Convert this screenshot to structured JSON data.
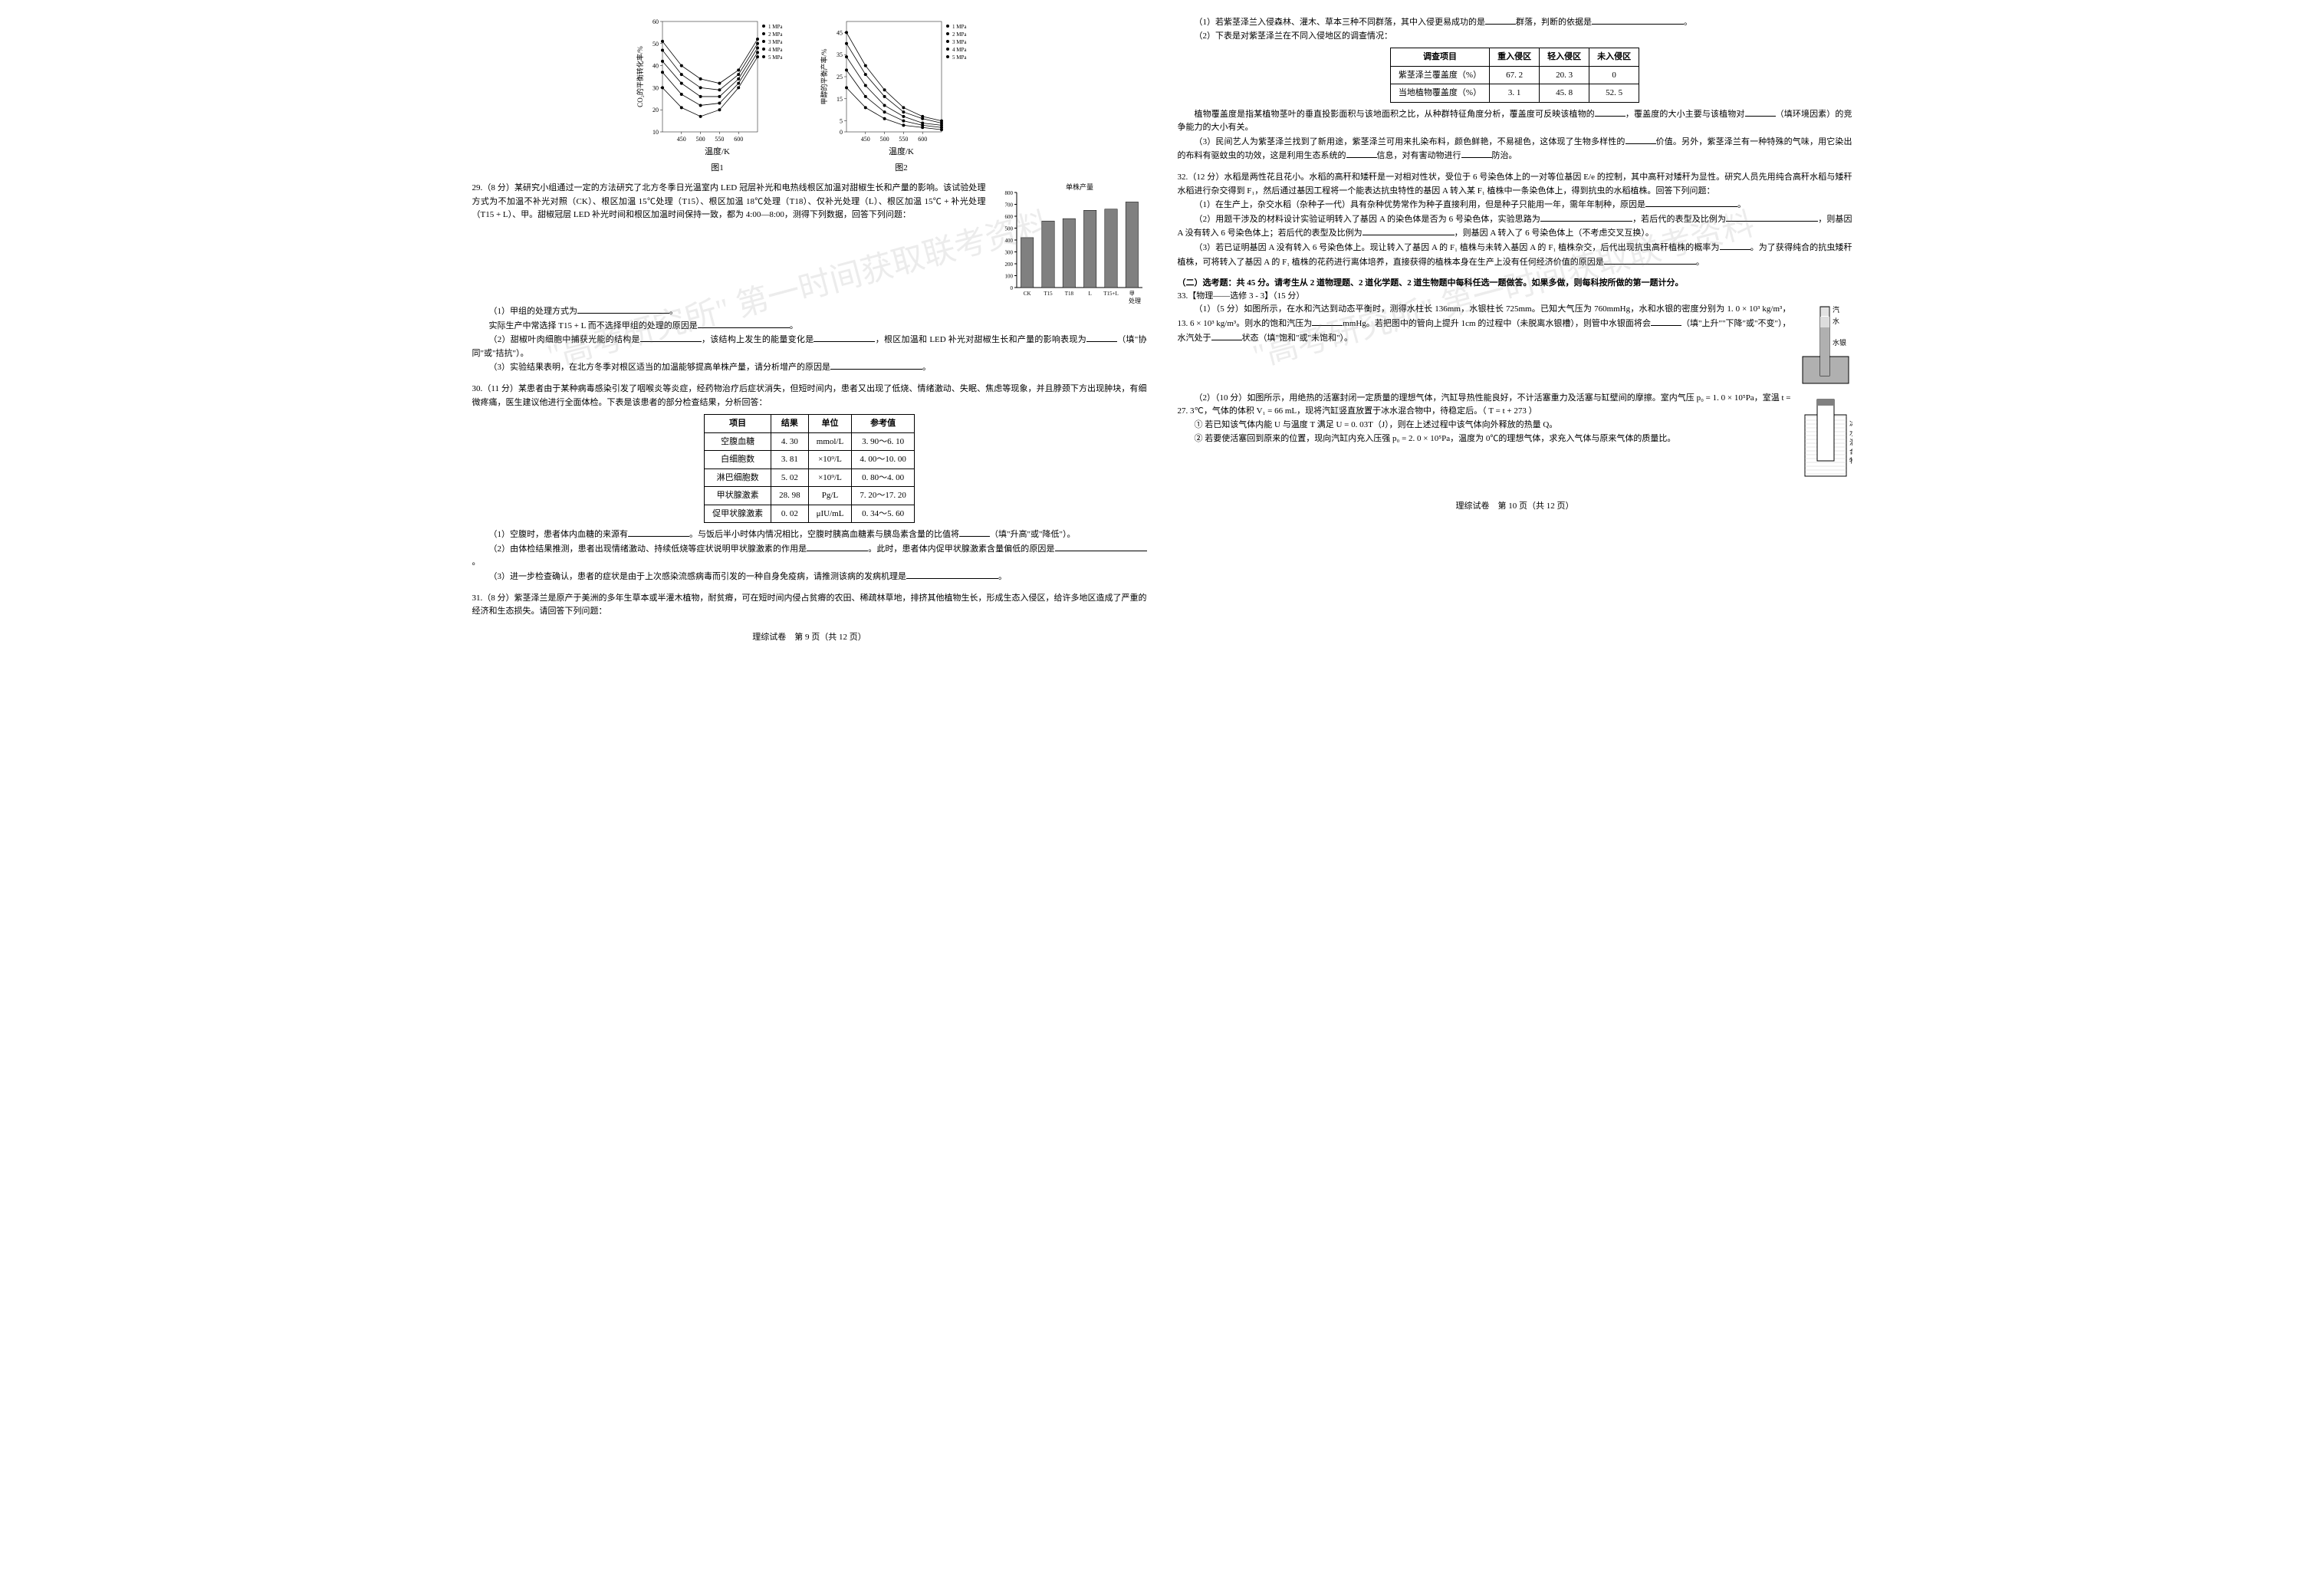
{
  "left_page": {
    "chart1": {
      "type": "line",
      "xlabel": "温度/K",
      "ylabel": "CO₂的平衡转化率/%",
      "caption": "图1",
      "xlim": [
        400,
        650
      ],
      "xticks": [
        450,
        500,
        550,
        600
      ],
      "ylim": [
        10,
        60
      ],
      "yticks": [
        10,
        20,
        30,
        40,
        50,
        60
      ],
      "series": [
        {
          "name": "1 MPa",
          "color": "#000000",
          "data": [
            [
              400,
              30
            ],
            [
              450,
              21
            ],
            [
              500,
              17
            ],
            [
              550,
              20
            ],
            [
              600,
              30
            ],
            [
              650,
              44
            ]
          ]
        },
        {
          "name": "2 MPa",
          "color": "#000000",
          "data": [
            [
              400,
              37
            ],
            [
              450,
              27
            ],
            [
              500,
              22
            ],
            [
              550,
              23
            ],
            [
              600,
              32
            ],
            [
              650,
              46
            ]
          ]
        },
        {
          "name": "3 MPa",
          "color": "#000000",
          "data": [
            [
              400,
              42
            ],
            [
              450,
              32
            ],
            [
              500,
              26
            ],
            [
              550,
              26
            ],
            [
              600,
              34
            ],
            [
              650,
              48
            ]
          ]
        },
        {
          "name": "4 MPa",
          "color": "#000000",
          "data": [
            [
              400,
              47
            ],
            [
              450,
              36
            ],
            [
              500,
              30
            ],
            [
              550,
              29
            ],
            [
              600,
              36
            ],
            [
              650,
              50
            ]
          ]
        },
        {
          "name": "5 MPa",
          "color": "#000000",
          "data": [
            [
              400,
              51
            ],
            [
              450,
              40
            ],
            [
              500,
              34
            ],
            [
              550,
              32
            ],
            [
              600,
              38
            ],
            [
              650,
              52
            ]
          ]
        }
      ],
      "marker": "circle",
      "marker_size": 2,
      "background_color": "#ffffff",
      "grid_color": "#cccccc",
      "title_fontsize": 10,
      "label_fontsize": 9
    },
    "chart2": {
      "type": "line",
      "xlabel": "温度/K",
      "ylabel": "甲醇的平衡产率/%",
      "caption": "图2",
      "xlim": [
        400,
        650
      ],
      "xticks": [
        450,
        500,
        550,
        600
      ],
      "ylim": [
        0,
        50
      ],
      "yticks": [
        0,
        5,
        15,
        25,
        35,
        45
      ],
      "series": [
        {
          "name": "1 MPa",
          "color": "#000000",
          "data": [
            [
              400,
              20
            ],
            [
              450,
              11
            ],
            [
              500,
              6
            ],
            [
              550,
              3
            ],
            [
              600,
              2
            ],
            [
              650,
              1
            ]
          ]
        },
        {
          "name": "2 MPa",
          "color": "#000000",
          "data": [
            [
              400,
              28
            ],
            [
              450,
              16
            ],
            [
              500,
              9
            ],
            [
              550,
              5
            ],
            [
              600,
              3
            ],
            [
              650,
              2
            ]
          ]
        },
        {
          "name": "3 MPa",
          "color": "#000000",
          "data": [
            [
              400,
              34
            ],
            [
              450,
              21
            ],
            [
              500,
              12
            ],
            [
              550,
              7
            ],
            [
              600,
              4
            ],
            [
              650,
              3
            ]
          ]
        },
        {
          "name": "4 MPa",
          "color": "#000000",
          "data": [
            [
              400,
              40
            ],
            [
              450,
              26
            ],
            [
              500,
              16
            ],
            [
              550,
              9
            ],
            [
              600,
              6
            ],
            [
              650,
              4
            ]
          ]
        },
        {
          "name": "5 MPa",
          "color": "#000000",
          "data": [
            [
              400,
              45
            ],
            [
              450,
              30
            ],
            [
              500,
              19
            ],
            [
              550,
              11
            ],
            [
              600,
              7
            ],
            [
              650,
              5
            ]
          ]
        }
      ],
      "marker": "circle",
      "marker_size": 2,
      "background_color": "#ffffff",
      "title_fontsize": 10,
      "label_fontsize": 9
    },
    "q29": {
      "number": "29.",
      "points": "（8 分）",
      "intro": "某研究小组通过一定的方法研究了北方冬季日光温室内 LED 冠层补光和电热线根区加温对甜椒生长和产量的影响。该试验处理方式为不加温不补光对照（CK）、根区加温 15℃处理（T15）、根区加温 18℃处理（T18）、仅补光处理（L）、根区加温 15℃ + 补光处理（T15 + L）、甲。甜椒冠层 LED 补光时间和根区加温时间保持一致，都为 4:00—8:00，测得下列数据，回答下列问题：",
      "bar_chart": {
        "type": "bar",
        "ylabel": "单株产量",
        "categories": [
          "CK",
          "T15",
          "T18",
          "L",
          "T15+L",
          "甲"
        ],
        "x_axis_label": "处理",
        "values": [
          420,
          560,
          580,
          650,
          660,
          720
        ],
        "ylim": [
          0,
          800
        ],
        "ytick_step": 100,
        "bar_color": "#808080",
        "bar_width": 0.6,
        "background_color": "#ffffff",
        "label_fontsize": 9
      },
      "sub1": "（1）甲组的处理方式为",
      "sub1b": "实际生产中常选择 T15 + L 而不选择甲组的处理的原因是",
      "sub2a": "（2）甜椒叶肉细胞中捕获光能的结构是",
      "sub2b": "，该结构上发生的能量变化是",
      "sub2c": "，根区加温和 LED 补光对甜椒生长和产量的影响表现为",
      "sub2d": "（填\"协同\"或\"拮抗\"）。",
      "sub3": "（3）实验结果表明，在北方冬季对根区适当的加温能够提高单株产量，请分析增产的原因是"
    },
    "q30": {
      "number": "30.",
      "points": "（11 分）",
      "intro": "某患者由于某种病毒感染引发了咽喉炎等炎症，经药物治疗后症状消失，但短时间内，患者又出现了低烧、情绪激动、失眠、焦虑等现象，并且脖颈下方出现肿块，有细微疼痛，医生建议他进行全面体检。下表是该患者的部分检查结果，分析回答：",
      "table": {
        "columns": [
          "项目",
          "结果",
          "单位",
          "参考值"
        ],
        "rows": [
          [
            "空腹血糖",
            "4. 30",
            "mmol/L",
            "3. 90～6. 10"
          ],
          [
            "白细胞数",
            "3. 81",
            "×10⁹/L",
            "4. 00～10. 00"
          ],
          [
            "淋巴细胞数",
            "5. 02",
            "×10⁹/L",
            "0. 80～4. 00"
          ],
          [
            "甲状腺激素",
            "28. 98",
            "Pg/L",
            "7. 20～17. 20"
          ],
          [
            "促甲状腺激素",
            "0. 02",
            "μIU/mL",
            "0. 34～5. 60"
          ]
        ]
      },
      "sub1a": "（1）空腹时，患者体内血糖的来源有",
      "sub1b": "。与饭后半小时体内情况相比，空腹时胰高血糖素与胰岛素含量的比值将",
      "sub1c": "（填\"升高\"或\"降低\"）。",
      "sub2a": "（2）由体检结果推测，患者出现情绪激动、持续低烧等症状说明甲状腺激素的作用是",
      "sub2b": "此时，患者体内促甲状腺激素含量偏低的原因是",
      "sub3": "（3）进一步检查确认，患者的症状是由于上次感染流感病毒而引发的一种自身免疫病，请推测该病的发病机理是"
    },
    "q31": {
      "number": "31.",
      "points": "（8 分）",
      "intro": "紫茎泽兰是原产于美洲的多年生草本或半灌木植物，耐贫瘠，可在短时间内侵占贫瘠的农田、稀疏林草地，排挤其他植物生长，形成生态入侵区，给许多地区造成了严重的经济和生态损失。请回答下列问题："
    },
    "footer": "理综试卷　第 9 页（共 12 页）",
    "watermark": "\"高考研究所\" 第一时间获取联考资料"
  },
  "right_page": {
    "q31_cont": {
      "sub1a": "（1）若紫茎泽兰入侵森林、灌木、草本三种不同群落，其中入侵更易成功的是",
      "sub1b": "群落，判断的依据是",
      "sub2_intro": "（2）下表是对紫茎泽兰在不同入侵地区的调查情况：",
      "table": {
        "columns": [
          "调查项目",
          "重入侵区",
          "轻入侵区",
          "未入侵区"
        ],
        "rows": [
          [
            "紫茎泽兰覆盖度（%）",
            "67. 2",
            "20. 3",
            "0"
          ],
          [
            "当地植物覆盖度（%）",
            "3. 1",
            "45. 8",
            "52. 5"
          ]
        ]
      },
      "sub2a": "植物覆盖度是指某植物茎叶的垂直投影面积与该地面积之比，从种群特征角度分析，覆盖度可反映该植物的",
      "sub2b": "，覆盖度的大小主要与该植物对",
      "sub2c": "（填环境因素）的竞争能力的大小有关。",
      "sub3a": "（3）民间艺人为紫茎泽兰找到了新用途，紫茎泽兰可用来扎染布料，颜色鲜艳，不易褪色，这体现了生物多样性的",
      "sub3b": "价值。另外，紫茎泽兰有一种特殊的气味，用它染出的布料有驱蚊虫的功效，这是利用生态系统的",
      "sub3c": "信息，对有害动物进行",
      "sub3d": "防治。"
    },
    "q32": {
      "number": "32.",
      "points": "（12 分）",
      "intro": "水稻是两性花且花小。水稻的高秆和矮秆是一对相对性状，受位于 6 号染色体上的一对等位基因 E/e 的控制，其中高秆对矮秆为显性。研究人员先用纯合高秆水稻与矮秆水稻进行杂交得到 F₁，然后通过基因工程将一个能表达抗虫特性的基因 A 转入某 F₁ 植株中一条染色体上，得到抗虫的水稻植株。回答下列问题：",
      "sub1": "（1）在生产上，杂交水稻（杂种子一代）具有杂种优势常作为种子直接利用，但是种子只能用一年，需年年制种，原因是",
      "sub2a": "（2）用题干涉及的材料设计实验证明转入了基因 A 的染色体是否为 6 号染色体，实验思路为",
      "sub2b": "，若后代的表型及比例为",
      "sub2c": "，则基因 A 没有转入 6 号染色体上；若后代的表型及比例为",
      "sub2d": "，则基因 A 转入了 6 号染色体上（不考虑交叉互换）。",
      "sub3a": "（3）若已证明基因 A 没有转入 6 号染色体上。现让转入了基因 A 的 F₁ 植株与未转入基因 A 的 F₁ 植株杂交，后代出现抗虫高秆植株的概率为",
      "sub3b": "。为了获得纯合的抗虫矮秆植株，可将转入了基因 A 的 F₁ 植株的花药进行离体培养，直接获得的植株本身在生产上没有任何经济价值的原因是"
    },
    "section2_heading": "（二）选考题：共 45 分。请考生从 2 道物理题、2 道化学题、2 道生物题中每科任选一题做答。如果多做，则每科按所做的第一题计分。",
    "q33": {
      "number": "33.",
      "heading": "【物理——选修 3 - 3】（15 分）",
      "part1": {
        "points": "（1）（5 分）",
        "text_a": "如图所示，在水和汽达到动态平衡时，测得水柱长 136mm，水银柱长 725mm。已知大气压为 760mmHg，水和水银的密度分别为 1. 0 × 10³ kg/m³，13. 6 × 10³ kg/m³。则水的饱和汽压为",
        "text_b": "mmHg。若把图中的管向上提升 1cm 的过程中（未脱离水银槽），则管中水银面将会",
        "text_c": "（填\"上升\"\"下降\"或\"不变\"），水汽处于",
        "text_d": "状态（填\"饱和\"或\"未饱和\"）。",
        "diagram": {
          "type": "schematic",
          "labels": [
            "汽",
            "水",
            "水银"
          ],
          "colors": {
            "background": "#ffffff",
            "tube": "#808080",
            "liquid": "#b0b0b0"
          }
        }
      },
      "part2": {
        "points": "（2）（10 分）",
        "text_a": "如图所示，用绝热的活塞封闭一定质量的理想气体，汽缸导热性能良好，不计活塞重力及活塞与缸壁间的摩擦。室内气压 p₀ = 1. 0 × 10⁵Pa，室温 t = 27. 3℃，气体的体积 V₁ = 66 mL，现将汽缸竖直放置于冰水混合物中，待稳定后。（ T = t + 273 ）",
        "sub1": "① 若已知该气体内能 U 与温度 T 满足 U = 0. 03T（J），则在上述过程中该气体向外释放的热量 Q。",
        "sub2": "② 若要使活塞回到原来的位置，现向汽缸内充入压强 p₀ = 2. 0 × 10⁵Pa，温度为 0℃的理想气体，求充入气体与原来气体的质量比。",
        "diagram": {
          "type": "schematic",
          "labels": [
            "冰水混合物"
          ],
          "colors": {
            "background": "#ffffff",
            "container": "#808080"
          }
        }
      }
    },
    "footer": "理综试卷　第 10 页（共 12 页）",
    "watermark": "\"高考研究所\" 第一时间获取联考资料"
  }
}
